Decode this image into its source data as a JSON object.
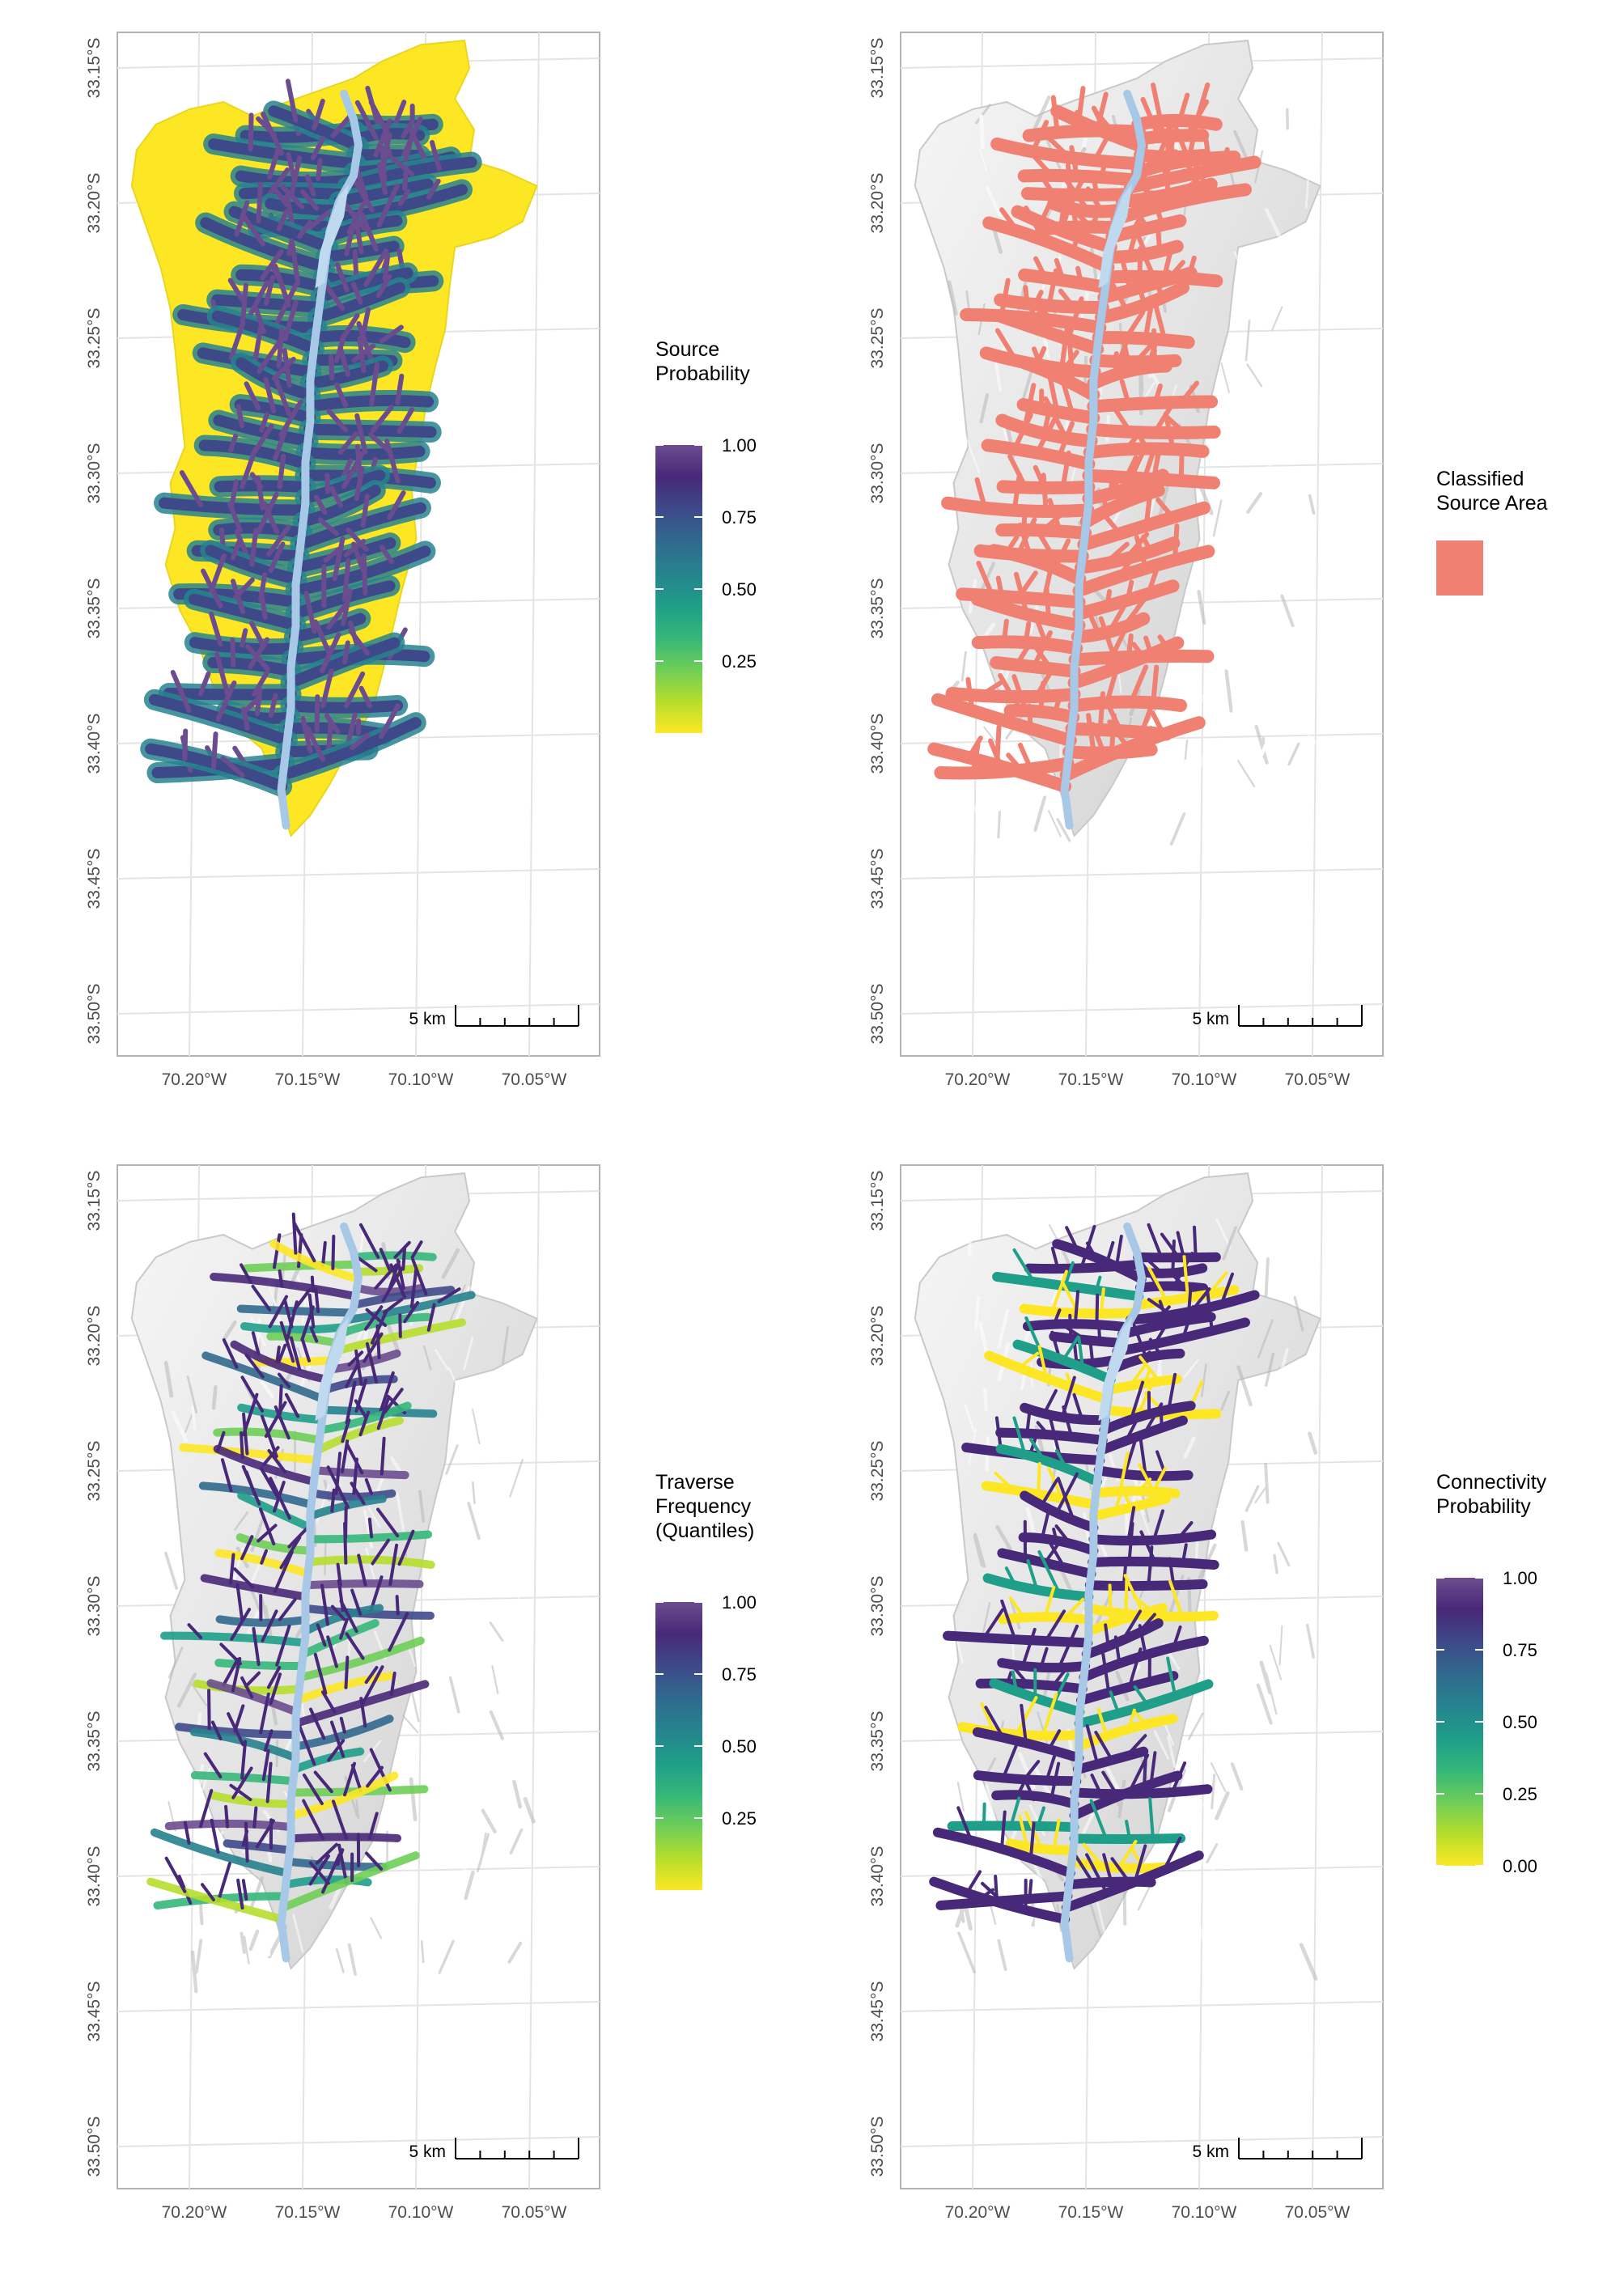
{
  "colors": {
    "viridis": [
      "#fde725",
      "#b5de2b",
      "#6ece58",
      "#35b779",
      "#1f9e89",
      "#26828e",
      "#31688e",
      "#3e4989",
      "#482878",
      "#6b4d8f"
    ],
    "classified": "#ef8072",
    "hillshade_light": "#f2f2f2",
    "hillshade_dark": "#c4c4c4",
    "river": "#a8c8e8",
    "lake": "#bfd9ef",
    "frame": "#b3b3b3",
    "gridline": "#e4e4e4"
  },
  "axes": {
    "lat_labels": [
      "33.15°S",
      "33.20°S",
      "33.25°S",
      "33.30°S",
      "33.35°S",
      "33.40°S",
      "33.45°S",
      "33.50°S"
    ],
    "lon_labels": [
      "70.20°W",
      "70.15°W",
      "70.10°W",
      "70.05°W"
    ]
  },
  "scale_bar": {
    "label": "5 km"
  },
  "panels": [
    {
      "id": "source-probability",
      "fill_mode": "probability-full",
      "legend": {
        "type": "gradient",
        "title_lines": [
          "Source",
          "Probability"
        ],
        "ticks": [
          "1.00",
          "0.75",
          "0.50",
          "0.25"
        ]
      }
    },
    {
      "id": "classified-source-area",
      "fill_mode": "classified",
      "legend": {
        "type": "swatch",
        "title_lines": [
          "Classified",
          "Source Area"
        ]
      }
    },
    {
      "id": "traverse-frequency",
      "fill_mode": "traverse",
      "legend": {
        "type": "gradient",
        "title_lines": [
          "Traverse",
          "Frequency",
          "(Quantiles)"
        ],
        "ticks": [
          "1.00",
          "0.75",
          "0.50",
          "0.25"
        ]
      }
    },
    {
      "id": "connectivity-probability",
      "fill_mode": "connectivity",
      "legend": {
        "type": "gradient",
        "title_lines": [
          "Connectivity",
          "Probability"
        ],
        "ticks": [
          "1.00",
          "0.75",
          "0.50",
          "0.25",
          "0.00"
        ]
      }
    }
  ]
}
